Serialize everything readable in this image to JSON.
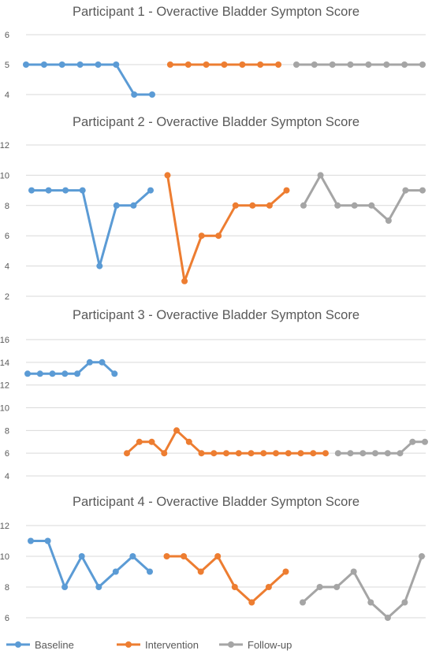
{
  "chart_data": [
    {
      "type": "line",
      "title": "Participant 1 - Overactive Bladder Sympton Score",
      "xlabel": "",
      "ylabel": "",
      "ylim": [
        4,
        6
      ],
      "yticks": [
        "4",
        "5",
        "6"
      ],
      "grid": true,
      "series": [
        {
          "name": "Baseline",
          "x": [
            1,
            2,
            3,
            4,
            5,
            6,
            7,
            8
          ],
          "values": [
            5,
            5,
            5,
            5,
            5,
            5,
            4,
            4
          ]
        },
        {
          "name": "Intervention",
          "x": [
            9,
            10,
            11,
            12,
            13,
            14,
            15
          ],
          "values": [
            5,
            5,
            5,
            5,
            5,
            5,
            5
          ]
        },
        {
          "name": "Follow-up",
          "x": [
            16,
            17,
            18,
            19,
            20,
            21,
            22,
            23
          ],
          "values": [
            5,
            5,
            5,
            5,
            5,
            5,
            5,
            5
          ]
        }
      ]
    },
    {
      "type": "line",
      "title": "Participant 2 - Overactive Bladder Sympton Score",
      "xlabel": "",
      "ylabel": "",
      "ylim": [
        2,
        12
      ],
      "yticks": [
        "2",
        "4",
        "6",
        "8",
        "10",
        "12"
      ],
      "grid": true,
      "series": [
        {
          "name": "Baseline",
          "x": [
            1,
            2,
            3,
            4,
            5,
            6,
            7,
            8
          ],
          "values": [
            9,
            9,
            9,
            9,
            4,
            8,
            8,
            9
          ]
        },
        {
          "name": "Intervention",
          "x": [
            9,
            10,
            11,
            12,
            13,
            14,
            15,
            16
          ],
          "values": [
            10,
            3,
            6,
            6,
            8,
            8,
            8,
            9
          ]
        },
        {
          "name": "Follow-up",
          "x": [
            17,
            18,
            19,
            20,
            21,
            22,
            23,
            24
          ],
          "values": [
            8,
            10,
            8,
            8,
            8,
            7,
            9,
            9
          ]
        }
      ]
    },
    {
      "type": "line",
      "title": "Participant 3 - Overactive Bladder Sympton Score",
      "xlabel": "",
      "ylabel": "",
      "ylim": [
        4,
        16
      ],
      "yticks": [
        "4",
        "6",
        "8",
        "10",
        "12",
        "14",
        "16"
      ],
      "grid": true,
      "series": [
        {
          "name": "Baseline",
          "x": [
            1,
            2,
            3,
            4,
            5,
            6,
            7,
            8
          ],
          "values": [
            13,
            13,
            13,
            13,
            13,
            14,
            14,
            13
          ]
        },
        {
          "name": "Intervention",
          "x": [
            9,
            10,
            11,
            12,
            13,
            14,
            15,
            16,
            17,
            18,
            19,
            20,
            21,
            22,
            23,
            24,
            25
          ],
          "values": [
            6,
            7,
            7,
            6,
            8,
            7,
            6,
            6,
            6,
            6,
            6,
            6,
            6,
            6,
            6,
            6,
            6
          ]
        },
        {
          "name": "Follow-up",
          "x": [
            26,
            27,
            28,
            29,
            30,
            31,
            32,
            33
          ],
          "values": [
            6,
            6,
            6,
            6,
            6,
            6,
            7,
            7
          ]
        }
      ]
    },
    {
      "type": "line",
      "title": "Participant 4 - Overactive Bladder Sympton Score",
      "xlabel": "",
      "ylabel": "",
      "ylim": [
        6,
        12
      ],
      "yticks": [
        "6",
        "8",
        "10",
        "12"
      ],
      "grid": true,
      "series": [
        {
          "name": "Baseline",
          "x": [
            1,
            2,
            3,
            4,
            5,
            6,
            7,
            8
          ],
          "values": [
            11,
            11,
            8,
            10,
            8,
            9,
            10,
            9
          ]
        },
        {
          "name": "Intervention",
          "x": [
            9,
            10,
            11,
            12,
            13,
            14,
            15,
            16
          ],
          "values": [
            10,
            10,
            9,
            10,
            8,
            7,
            8,
            9
          ]
        },
        {
          "name": "Follow-up",
          "x": [
            17,
            18,
            19,
            20,
            21,
            22,
            23,
            24
          ],
          "values": [
            7,
            8,
            8,
            9,
            7,
            6,
            7,
            10
          ]
        }
      ]
    }
  ],
  "legend": {
    "placement": "bottom",
    "items": [
      {
        "label": "Baseline",
        "color": "#5b9bd5"
      },
      {
        "label": "Intervention",
        "color": "#ed7d31"
      },
      {
        "label": "Follow-up",
        "color": "#a5a5a5"
      }
    ]
  }
}
